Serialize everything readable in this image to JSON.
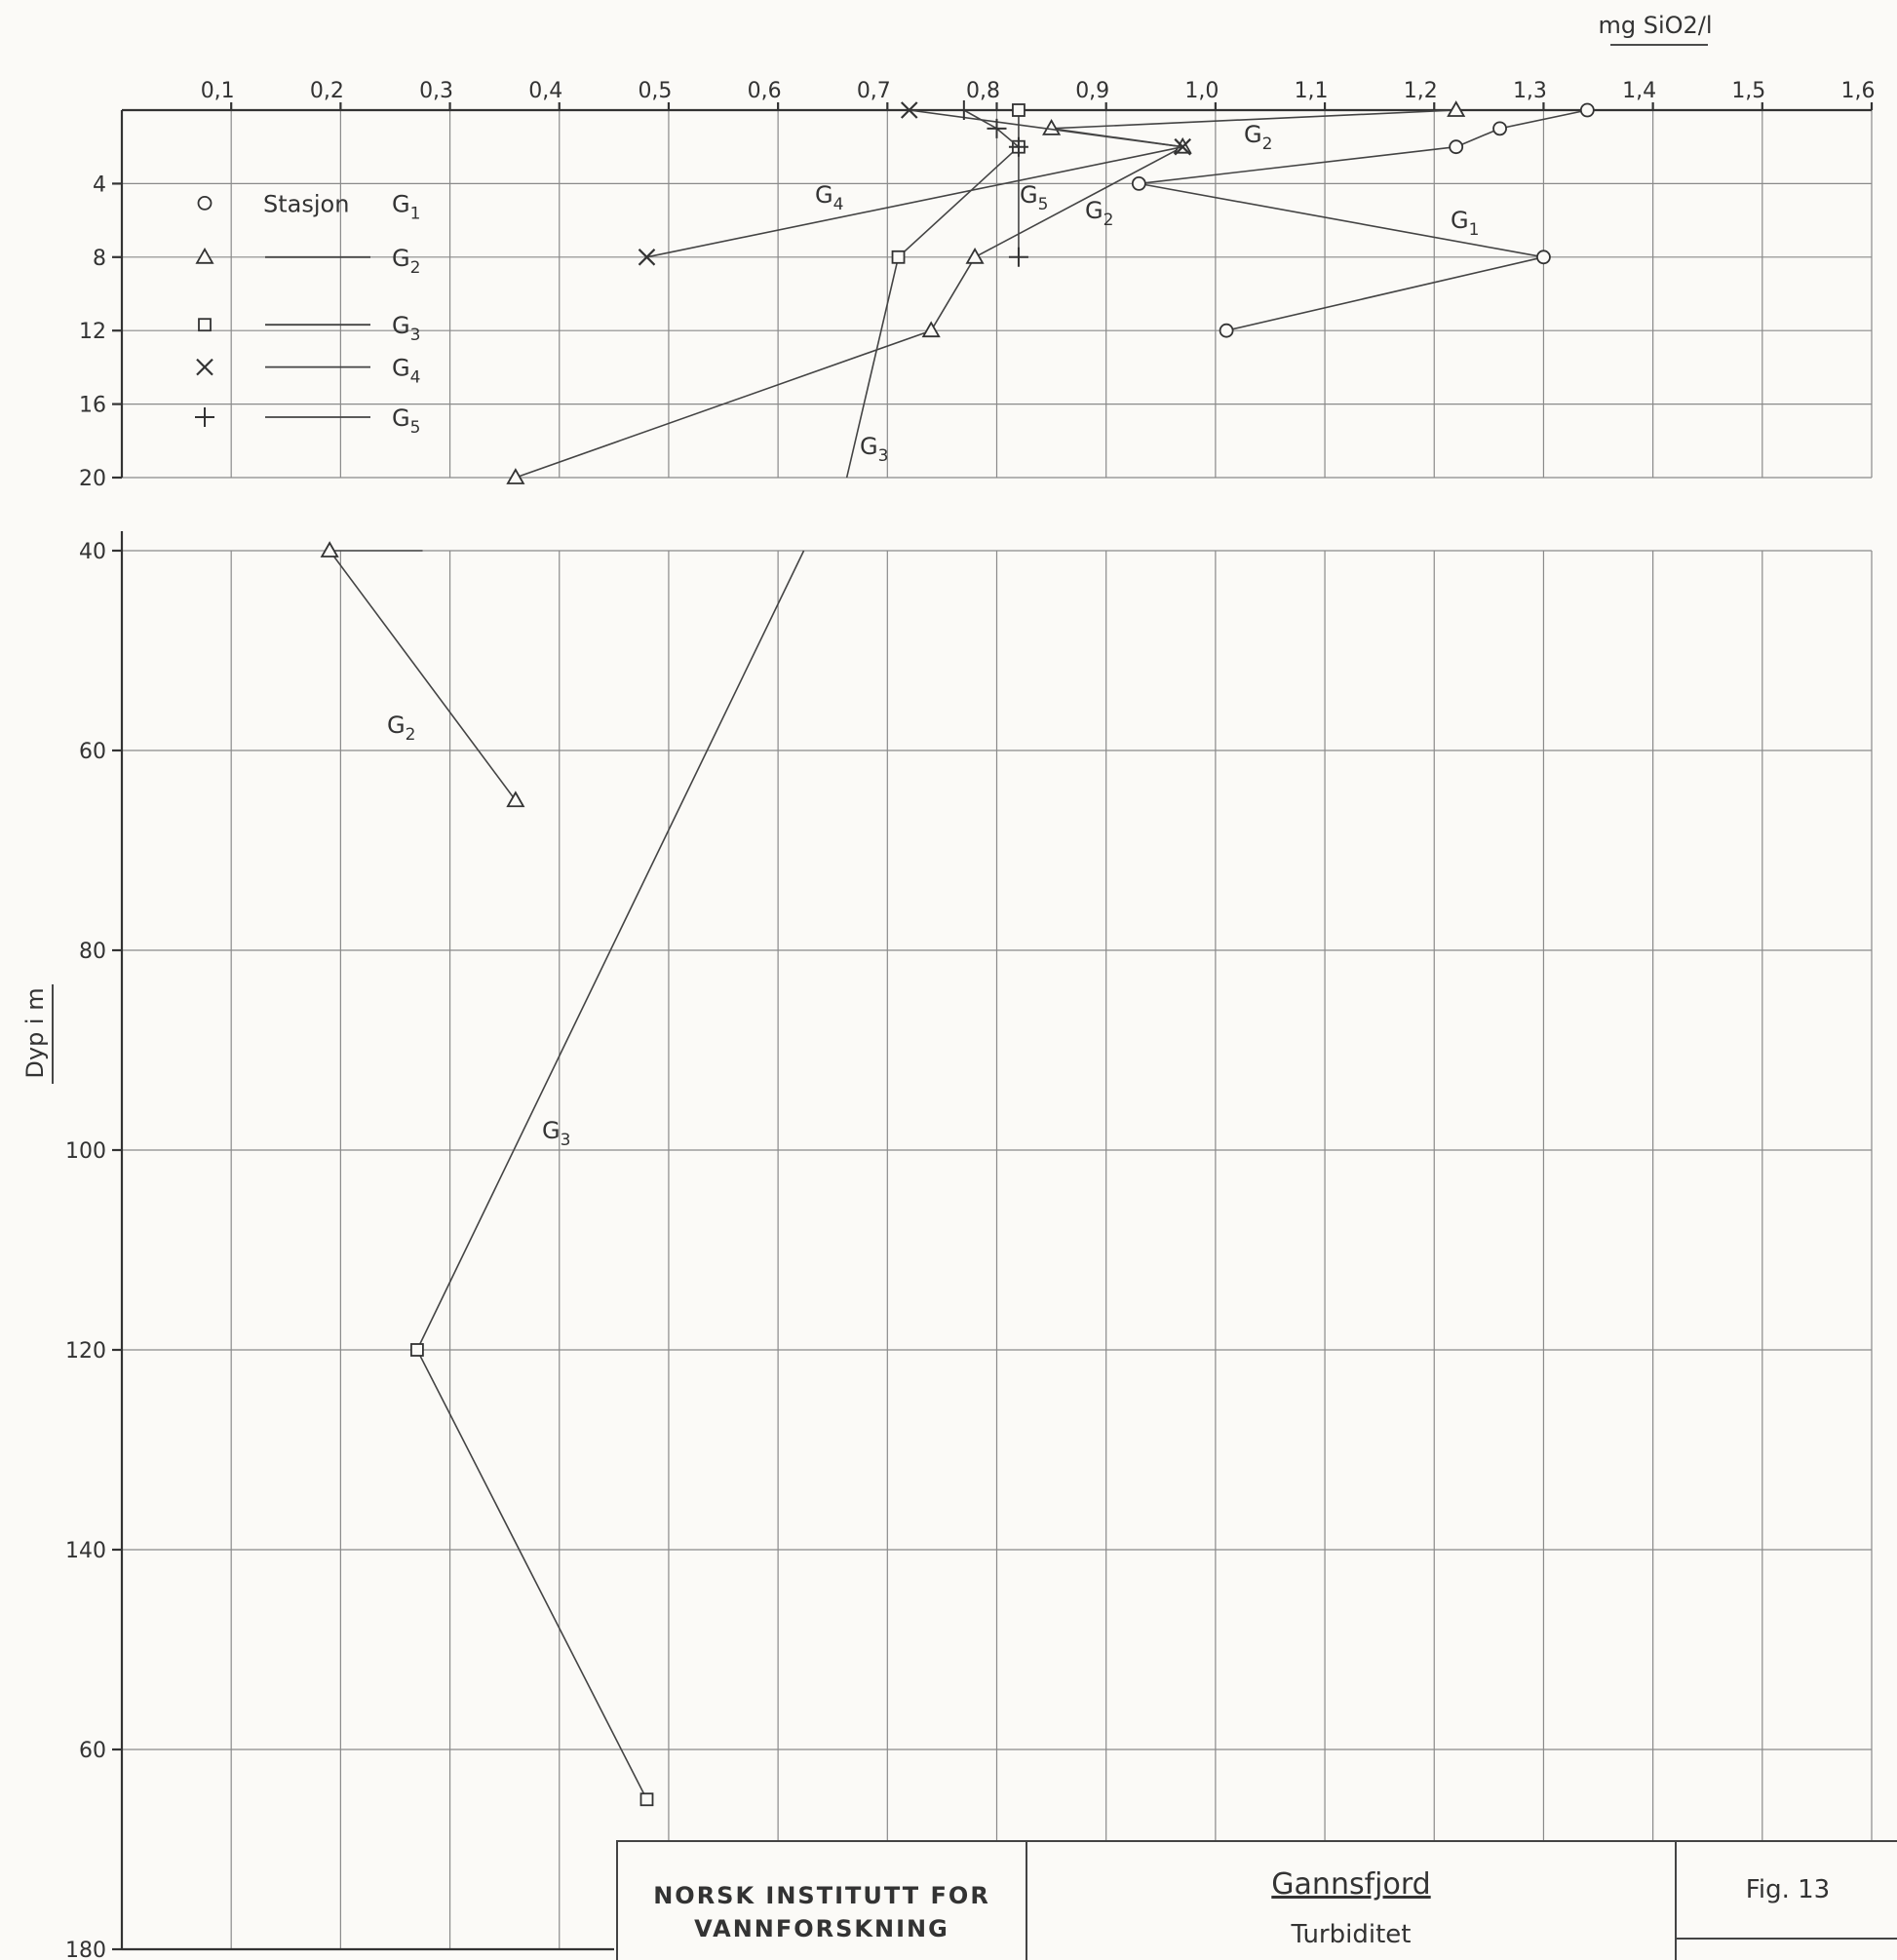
{
  "chart_data": {
    "type": "line",
    "xlabel": "mg SiO2/l",
    "ylabel": "Dyp i m",
    "xlim": [
      0,
      1.6
    ],
    "x_ticks": [
      "0,1",
      "0,2",
      "0,3",
      "0,4",
      "0,5",
      "0,6",
      "0,7",
      "0,8",
      "0,9",
      "1,0",
      "1,1",
      "1,2",
      "1,3",
      "1,4",
      "1,5",
      "1,6"
    ],
    "upper_y_ticks": [
      "4",
      "8",
      "12",
      "16",
      "20"
    ],
    "lower_y_ticks": [
      "40",
      "60",
      "80",
      "100",
      "120",
      "140",
      "60",
      "180"
    ],
    "legend": {
      "heading": "Stasjon",
      "entries": [
        {
          "marker": "circle",
          "label": "G1"
        },
        {
          "marker": "triangle",
          "label": "G2"
        },
        {
          "marker": "square",
          "label": "G3"
        },
        {
          "marker": "cross",
          "label": "G4"
        },
        {
          "marker": "plus",
          "label": "G5"
        }
      ]
    },
    "series": [
      {
        "name": "G1",
        "marker": "circle",
        "points": [
          [
            1.34,
            0
          ],
          [
            1.26,
            1
          ],
          [
            1.22,
            2
          ],
          [
            0.93,
            4
          ],
          [
            1.3,
            8
          ],
          [
            1.01,
            12
          ]
        ]
      },
      {
        "name": "G2",
        "marker": "triangle",
        "points": [
          [
            1.22,
            0
          ],
          [
            0.85,
            1
          ],
          [
            0.97,
            2
          ],
          [
            0.78,
            8
          ],
          [
            0.74,
            12
          ],
          [
            0.36,
            20
          ],
          [
            0.19,
            40
          ],
          [
            0.36,
            65
          ]
        ]
      },
      {
        "name": "G3",
        "marker": "square",
        "points": [
          [
            0.82,
            0
          ],
          [
            0.82,
            2
          ],
          [
            0.71,
            8
          ],
          [
            0.27,
            120
          ],
          [
            0.48,
            165
          ]
        ]
      },
      {
        "name": "G4",
        "marker": "cross",
        "points": [
          [
            0.72,
            0
          ],
          [
            0.97,
            2
          ],
          [
            0.48,
            8
          ]
        ]
      },
      {
        "name": "G5",
        "marker": "plus",
        "points": [
          [
            0.77,
            0
          ],
          [
            0.8,
            1
          ],
          [
            0.82,
            2
          ],
          [
            0.82,
            8
          ]
        ]
      }
    ],
    "annotations": [
      "G1",
      "G2",
      "G2",
      "G2",
      "G3",
      "G3",
      "G4",
      "G5"
    ]
  },
  "title_block": {
    "institute": "NORSK INSTITUTT FOR VANNFORSKNING",
    "place": "Gannsfjord",
    "parameter": "Turbiditet",
    "figure": "Fig. 13"
  }
}
